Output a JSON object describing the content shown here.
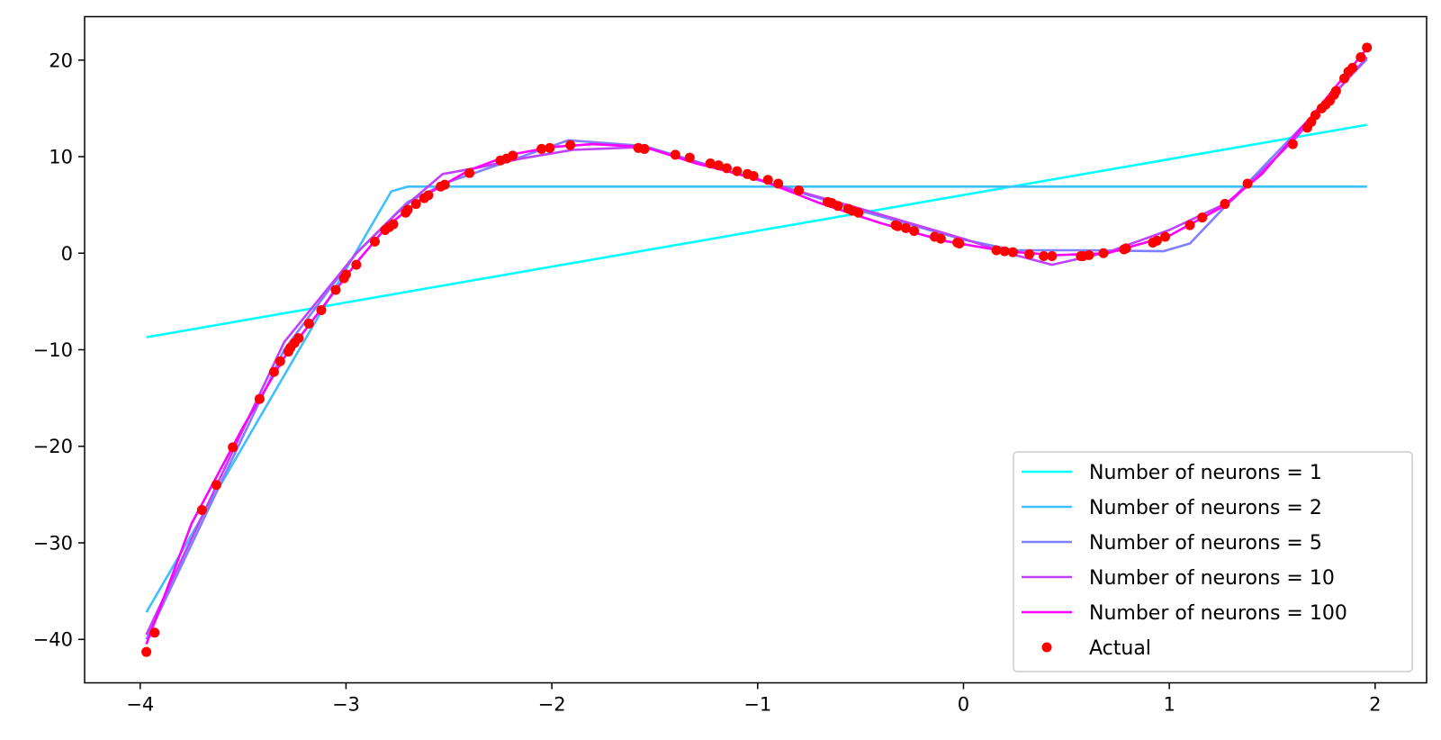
{
  "chart_data": {
    "type": "line",
    "title": "",
    "xlabel": "",
    "ylabel": "",
    "xlim": [
      -4.27,
      2.25
    ],
    "ylim": [
      -44.5,
      24.5
    ],
    "xticks": [
      -4,
      -3,
      -2,
      -1,
      0,
      1,
      2
    ],
    "xtick_labels": [
      "−4",
      "−3",
      "−2",
      "−1",
      "0",
      "1",
      "2"
    ],
    "yticks": [
      -40,
      -30,
      -20,
      -10,
      0,
      10,
      20
    ],
    "ytick_labels": [
      "−40",
      "−30",
      "−20",
      "−10",
      "0",
      "10",
      "20"
    ],
    "grid": false,
    "legend_position": "lower-right",
    "series": [
      {
        "name": "Number of neurons = 1",
        "color": "#00ffff",
        "x": [
          -3.97,
          1.96
        ],
        "y": [
          -8.7,
          13.3
        ]
      },
      {
        "name": "Number of neurons = 2",
        "color": "#40bfff",
        "x": [
          -3.97,
          -2.78,
          -2.7,
          1.96
        ],
        "y": [
          -37.2,
          6.4,
          6.9,
          6.9
        ]
      },
      {
        "name": "Number of neurons = 5",
        "color": "#7f7fff",
        "x": [
          -3.97,
          -3.3,
          -2.95,
          -2.78,
          -2.7,
          -2.5,
          -2.2,
          -1.92,
          -1.55,
          -1.0,
          -0.5,
          0.0,
          0.25,
          0.6,
          0.97,
          1.1,
          1.35,
          1.96
        ],
        "y": [
          -40.0,
          -10.0,
          0.0,
          3.6,
          5.3,
          7.4,
          9.6,
          11.7,
          11.1,
          7.6,
          4.4,
          1.4,
          0.3,
          0.3,
          0.2,
          1.0,
          6.6,
          20.1
        ]
      },
      {
        "name": "Number of neurons = 10",
        "color": "#bf40ff",
        "x": [
          -3.97,
          -3.3,
          -2.95,
          -2.75,
          -2.53,
          -2.35,
          -2.15,
          -1.9,
          -1.55,
          -1.0,
          -0.5,
          0.0,
          0.2,
          0.43,
          0.7,
          1.0,
          1.3,
          1.6,
          1.96
        ],
        "y": [
          -39.5,
          -9.2,
          0.0,
          4.2,
          8.2,
          8.9,
          9.8,
          10.7,
          11.0,
          7.6,
          4.6,
          1.5,
          0.1,
          -1.2,
          0.1,
          2.4,
          5.4,
          11.6,
          20.3
        ]
      },
      {
        "name": "Number of neurons = 100",
        "color": "#ff00ff",
        "x": [
          -3.97,
          -3.75,
          -3.5,
          -3.3,
          -3.1,
          -2.95,
          -2.8,
          -2.6,
          -2.4,
          -2.2,
          -2.0,
          -1.8,
          -1.55,
          -1.3,
          -1.0,
          -0.7,
          -0.4,
          -0.1,
          0.2,
          0.45,
          0.7,
          1.0,
          1.25,
          1.45,
          1.7,
          1.96
        ],
        "y": [
          -40.5,
          -28.0,
          -18.0,
          -10.8,
          -5.2,
          -1.0,
          2.8,
          6.2,
          8.6,
          10.2,
          11.0,
          11.3,
          11.0,
          9.3,
          7.7,
          5.2,
          3.1,
          1.3,
          0.2,
          -0.2,
          0.0,
          1.8,
          4.7,
          8.2,
          14.4,
          21.2
        ]
      },
      {
        "name": "Actual",
        "color": "#ff0000",
        "marker": "o",
        "x": [
          -3.97,
          -3.93,
          -3.7,
          -3.63,
          -3.55,
          -3.42,
          -3.35,
          -3.32,
          -3.28,
          -3.27,
          -3.25,
          -3.23,
          -3.18,
          -3.12,
          -3.05,
          -3.01,
          -3.0,
          -2.95,
          -2.86,
          -2.81,
          -2.79,
          -2.77,
          -2.71,
          -2.7,
          -2.66,
          -2.62,
          -2.6,
          -2.54,
          -2.52,
          -2.4,
          -2.25,
          -2.22,
          -2.19,
          -2.05,
          -2.01,
          -1.91,
          -1.58,
          -1.55,
          -1.4,
          -1.33,
          -1.23,
          -1.19,
          -1.15,
          -1.1,
          -1.05,
          -1.02,
          -0.95,
          -0.9,
          -0.8,
          -0.66,
          -0.64,
          -0.61,
          -0.56,
          -0.54,
          -0.51,
          -0.33,
          -0.32,
          -0.28,
          -0.24,
          -0.14,
          -0.11,
          -0.03,
          -0.02,
          0.16,
          0.2,
          0.24,
          0.32,
          0.39,
          0.43,
          0.57,
          0.58,
          0.61,
          0.68,
          0.78,
          0.79,
          0.92,
          0.94,
          0.98,
          1.1,
          1.16,
          1.27,
          1.38,
          1.6,
          1.67,
          1.69,
          1.71,
          1.74,
          1.76,
          1.78,
          1.8,
          1.81,
          1.85,
          1.87,
          1.89,
          1.93,
          1.96
        ],
        "y": [
          -41.3,
          -39.3,
          -26.6,
          -24.0,
          -20.1,
          -15.1,
          -12.3,
          -11.2,
          -10.2,
          -9.8,
          -9.3,
          -8.8,
          -7.3,
          -5.9,
          -3.8,
          -2.6,
          -2.2,
          -1.2,
          1.2,
          2.4,
          2.7,
          3.0,
          4.2,
          4.5,
          5.1,
          5.7,
          6.0,
          6.9,
          7.1,
          8.3,
          9.6,
          9.8,
          10.1,
          10.8,
          10.9,
          11.2,
          10.9,
          10.8,
          10.2,
          9.9,
          9.3,
          9.1,
          8.8,
          8.5,
          8.2,
          8.0,
          7.6,
          7.2,
          6.5,
          5.3,
          5.2,
          4.9,
          4.6,
          4.4,
          4.2,
          2.9,
          2.8,
          2.6,
          2.3,
          1.7,
          1.5,
          1.1,
          1.0,
          0.3,
          0.2,
          0.1,
          -0.1,
          -0.3,
          -0.3,
          -0.3,
          -0.3,
          -0.2,
          0.0,
          0.4,
          0.5,
          1.1,
          1.3,
          1.7,
          2.9,
          3.7,
          5.1,
          7.2,
          11.3,
          13.0,
          13.6,
          14.3,
          15.0,
          15.4,
          15.8,
          16.4,
          16.8,
          18.1,
          18.8,
          19.2,
          20.3,
          21.3
        ]
      }
    ]
  }
}
